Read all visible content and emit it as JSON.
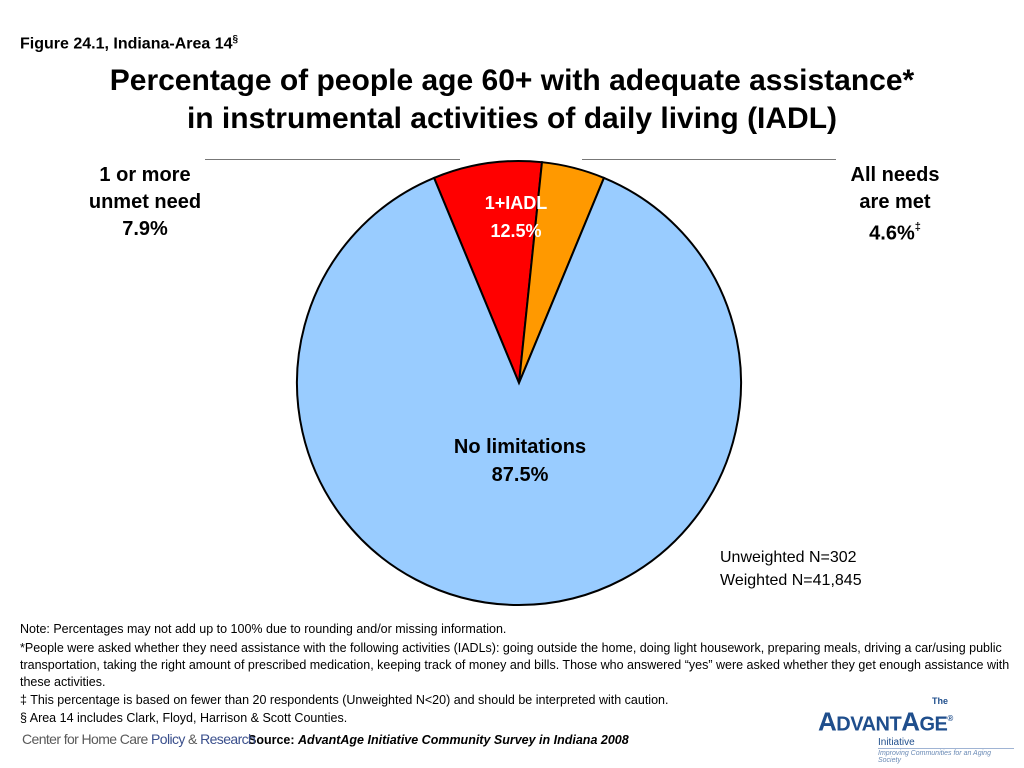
{
  "header": {
    "figure_label": "Figure 24.1, Indiana-Area 14",
    "figure_mark": "§",
    "title_line1": "Percentage of people age 60+ with adequate assistance*",
    "title_line2": "in instrumental activities of daily living (IADL)"
  },
  "colors": {
    "no_limitations": "#99ccff",
    "unmet_need": "#ff0000",
    "needs_met": "#ff9900",
    "outline": "#000000"
  },
  "chart_data": {
    "type": "pie",
    "title": "Percentage of people age 60+ with adequate assistance* in instrumental activities of daily living (IADL)",
    "slices": [
      {
        "name": "No limitations",
        "value": 87.5,
        "color": "#99ccff",
        "label": "No limitations",
        "value_label": "87.5%"
      },
      {
        "name": "1 or more unmet need",
        "value": 7.9,
        "color": "#ff0000"
      },
      {
        "name": "All needs are met",
        "value": 4.6,
        "color": "#ff9900"
      }
    ],
    "group_label": {
      "name": "1+IADL",
      "value_label": "12.5%"
    }
  },
  "labels": {
    "left_line1": "1 or more",
    "left_line2": "unmet need",
    "left_line3": "7.9%",
    "right_line1": "All needs",
    "right_line2": "are met",
    "right_line3": "4.6%",
    "right_mark": "‡"
  },
  "sample": {
    "unweighted": "Unweighted N=302",
    "weighted": "Weighted N=41,845"
  },
  "notes": {
    "note": "Note: Percentages may not add up to 100% due to rounding and/or missing information.",
    "asterisk": "*People were asked whether they need assistance with the following activities (IADLs): going outside the home, doing light housework, preparing meals, driving a car/using public transportation, taking the right amount of prescribed medication, keeping track of money and bills. Those who answered “yes” were asked whether they get enough assistance with these activities.",
    "double_dagger": "‡ This percentage is based on fewer than 20 respondents (Unweighted N<20) and should be interpreted with caution.",
    "section": "§ Area 14 includes Clark, Floyd, Harrison & Scott Counties."
  },
  "source": {
    "prefix": "Source:",
    "title": "AdvantAge Initiative Community Survey in Indiana 2008"
  },
  "logos": {
    "left_part1": "Center for Home Care ",
    "left_part2": "Policy",
    "left_part3": " & ",
    "left_part4": "Research",
    "right_the": "The",
    "right_brand1": "A",
    "right_brand2": "DVANT",
    "right_brand3": "A",
    "right_brand4": "GE",
    "right_reg": "®",
    "right_initiative": "Initiative",
    "right_tagline": "Improving Communities for an Aging Society"
  }
}
